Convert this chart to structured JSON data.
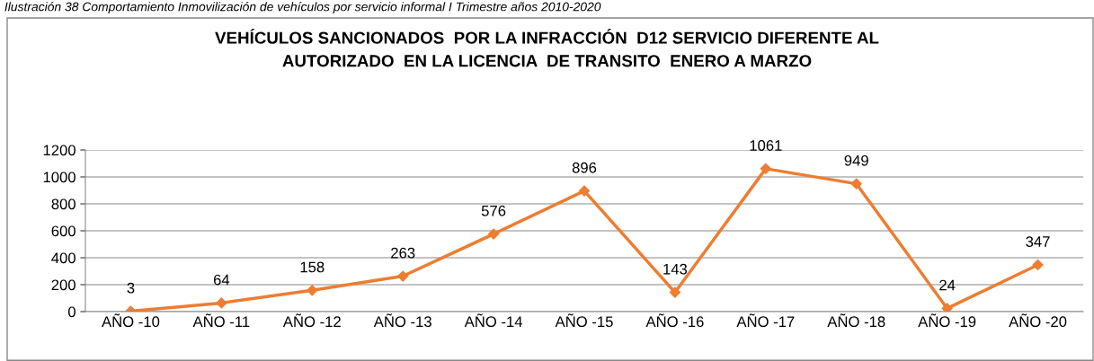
{
  "chart_data": {
    "type": "line",
    "title": "VEHÍCULOS SANCIONADOS  POR LA INFRACCIÓN  D12 SERVICIO DIFERENTE AL\nAUTORIZADO  EN LA LICENCIA  DE TRANSITO  ENERO A MARZO",
    "annotations": [
      "Ilustración 38 Comportamiento Inmovilización de vehículos por servicio informal I Trimestre años 2010-2020"
    ],
    "categories": [
      "AÑO -10",
      "AÑO -11",
      "AÑO -12",
      "AÑO -13",
      "AÑO -14",
      "AÑO -15",
      "AÑO -16",
      "AÑO -17",
      "AÑO -18",
      "AÑO -19",
      "AÑO -20"
    ],
    "series": [
      {
        "color": "#ed7d31",
        "values": [
          3,
          64,
          158,
          263,
          576,
          896,
          143,
          1061,
          949,
          24,
          347
        ]
      }
    ],
    "ylim": [
      0,
      1200
    ],
    "yticks": [
      0,
      200,
      400,
      600,
      800,
      1000,
      1200
    ],
    "grid": "y",
    "marker": "diamond",
    "line_style": "solid",
    "data_labels": true,
    "legend": false
  }
}
